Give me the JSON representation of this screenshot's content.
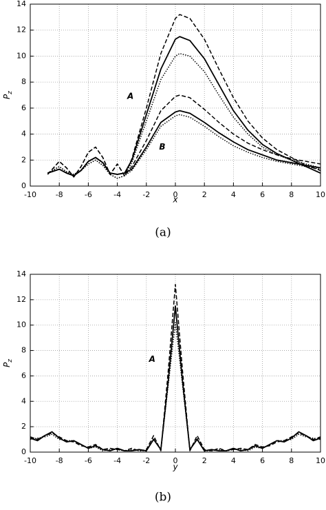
{
  "chart_data": [
    {
      "type": "line",
      "caption": "(a)",
      "xlabel": "x",
      "ylabel": {
        "text": "P",
        "subscript": "z"
      },
      "annotations": [
        "A",
        "B"
      ],
      "xlim": [
        -10,
        10
      ],
      "ylim": [
        0,
        14
      ],
      "xticks": [
        -10,
        -8,
        -6,
        -4,
        -2,
        0,
        2,
        4,
        6,
        8,
        10
      ],
      "yticks": [
        0,
        2,
        4,
        6,
        8,
        10,
        12,
        14
      ],
      "grid": true,
      "x": [
        -8.8,
        -8,
        -7.5,
        -7,
        -6.5,
        -6,
        -5.5,
        -5,
        -4.5,
        -4,
        -3.5,
        -3,
        -2,
        -1,
        0,
        0.3,
        1,
        2,
        3,
        4,
        5,
        6,
        7,
        8,
        9,
        10
      ],
      "series": [
        {
          "color": "#000000",
          "dash": "dashed",
          "values": [
            0.9,
            1.9,
            1.4,
            0.7,
            1.5,
            2.6,
            3.0,
            2.2,
            0.9,
            1.7,
            0.8,
            2.1,
            6.0,
            10.2,
            12.9,
            13.2,
            12.9,
            11.3,
            9.0,
            6.8,
            5.0,
            3.7,
            2.8,
            2.2,
            1.6,
            1.2
          ]
        },
        {
          "color": "#000000",
          "dash": "solid",
          "values": [
            1.0,
            1.3,
            1.0,
            0.8,
            1.2,
            1.9,
            2.2,
            1.8,
            1.0,
            0.9,
            1.0,
            2.0,
            5.5,
            9.0,
            11.3,
            11.5,
            11.2,
            9.8,
            7.8,
            5.8,
            4.3,
            3.2,
            2.5,
            2.0,
            1.5,
            1.0
          ]
        },
        {
          "color": "#000000",
          "dash": "dotted",
          "values": [
            1.0,
            1.5,
            1.1,
            0.9,
            1.2,
            1.7,
            2.0,
            1.6,
            0.9,
            0.6,
            0.8,
            1.8,
            5.0,
            8.2,
            10.0,
            10.2,
            10.0,
            8.8,
            7.0,
            5.3,
            4.0,
            3.0,
            2.4,
            2.0,
            1.7,
            1.4
          ]
        },
        {
          "color": "#000000",
          "dash": "dashed",
          "values": [
            0.9,
            1.9,
            1.4,
            0.7,
            1.5,
            2.6,
            3.0,
            2.2,
            0.9,
            1.7,
            0.8,
            1.5,
            3.5,
            5.8,
            6.9,
            7.0,
            6.8,
            5.9,
            4.9,
            4.0,
            3.3,
            2.8,
            2.4,
            2.1,
            1.9,
            1.7
          ]
        },
        {
          "color": "#000000",
          "dash": "solid",
          "values": [
            1.0,
            1.3,
            1.0,
            0.8,
            1.2,
            1.9,
            2.2,
            1.8,
            1.0,
            0.9,
            1.0,
            1.3,
            3.0,
            4.9,
            5.7,
            5.8,
            5.6,
            4.9,
            4.1,
            3.4,
            2.8,
            2.4,
            2.0,
            1.8,
            1.6,
            1.4
          ]
        },
        {
          "color": "#000000",
          "dash": "dotted",
          "values": [
            1.0,
            1.5,
            1.1,
            0.9,
            1.2,
            1.7,
            2.0,
            1.6,
            0.9,
            0.6,
            0.8,
            1.2,
            2.8,
            4.6,
            5.4,
            5.5,
            5.3,
            4.6,
            3.8,
            3.1,
            2.6,
            2.2,
            1.9,
            1.7,
            1.5,
            1.3
          ]
        }
      ]
    },
    {
      "type": "line",
      "caption": "(b)",
      "xlabel": "y",
      "ylabel": {
        "text": "P",
        "subscript": "z"
      },
      "annotations": [
        "A"
      ],
      "xlim": [
        -10,
        10
      ],
      "ylim": [
        0,
        14
      ],
      "xticks": [
        -10,
        -8,
        -6,
        -4,
        -2,
        0,
        2,
        4,
        6,
        8,
        10
      ],
      "yticks": [
        0,
        2,
        4,
        6,
        8,
        10,
        12,
        14
      ],
      "grid": true,
      "x": [
        -10,
        -9.5,
        -9,
        -8.5,
        -8,
        -7.5,
        -7,
        -6.5,
        -6,
        -5.5,
        -5,
        -4.5,
        -4,
        -3.5,
        -3,
        -2.5,
        -2,
        -1.5,
        -1,
        -0.5,
        0,
        0.5,
        1,
        1.5,
        2,
        2.5,
        3,
        3.5,
        4,
        4.5,
        5,
        5.5,
        6,
        6.5,
        7,
        7.5,
        8,
        8.5,
        9,
        9.5,
        10
      ],
      "series": [
        {
          "color": "#000000",
          "dash": "dashed",
          "values": [
            1.2,
            1.0,
            1.3,
            1.5,
            1.2,
            0.9,
            0.8,
            0.5,
            0.4,
            0.6,
            0.2,
            0.3,
            0.2,
            0.1,
            0.3,
            0.1,
            0.2,
            1.3,
            0.1,
            6.3,
            13.2,
            6.3,
            0.1,
            1.3,
            0.2,
            0.1,
            0.3,
            0.1,
            0.2,
            0.3,
            0.2,
            0.6,
            0.4,
            0.5,
            0.8,
            0.9,
            1.2,
            1.5,
            1.3,
            1.0,
            1.2
          ]
        },
        {
          "color": "#000000",
          "dash": "solid",
          "values": [
            1.1,
            0.9,
            1.3,
            1.6,
            1.1,
            0.8,
            0.9,
            0.6,
            0.3,
            0.5,
            0.2,
            0.1,
            0.3,
            0.1,
            0.1,
            0.2,
            0.1,
            1.0,
            0.2,
            5.5,
            11.5,
            5.5,
            0.2,
            1.0,
            0.1,
            0.2,
            0.1,
            0.1,
            0.3,
            0.1,
            0.2,
            0.5,
            0.3,
            0.6,
            0.9,
            0.8,
            1.1,
            1.6,
            1.3,
            0.9,
            1.1
          ]
        },
        {
          "color": "#000000",
          "dash": "dotted",
          "values": [
            1.0,
            1.1,
            1.2,
            1.4,
            1.0,
            0.9,
            0.9,
            0.6,
            0.3,
            0.4,
            0.1,
            0.2,
            0.2,
            0.1,
            0.2,
            0.1,
            0.1,
            1.1,
            0.2,
            5.2,
            10.2,
            5.2,
            0.2,
            1.1,
            0.1,
            0.1,
            0.2,
            0.1,
            0.2,
            0.2,
            0.1,
            0.4,
            0.3,
            0.6,
            0.9,
            0.9,
            1.0,
            1.4,
            1.2,
            1.1,
            1.0
          ]
        }
      ]
    }
  ]
}
